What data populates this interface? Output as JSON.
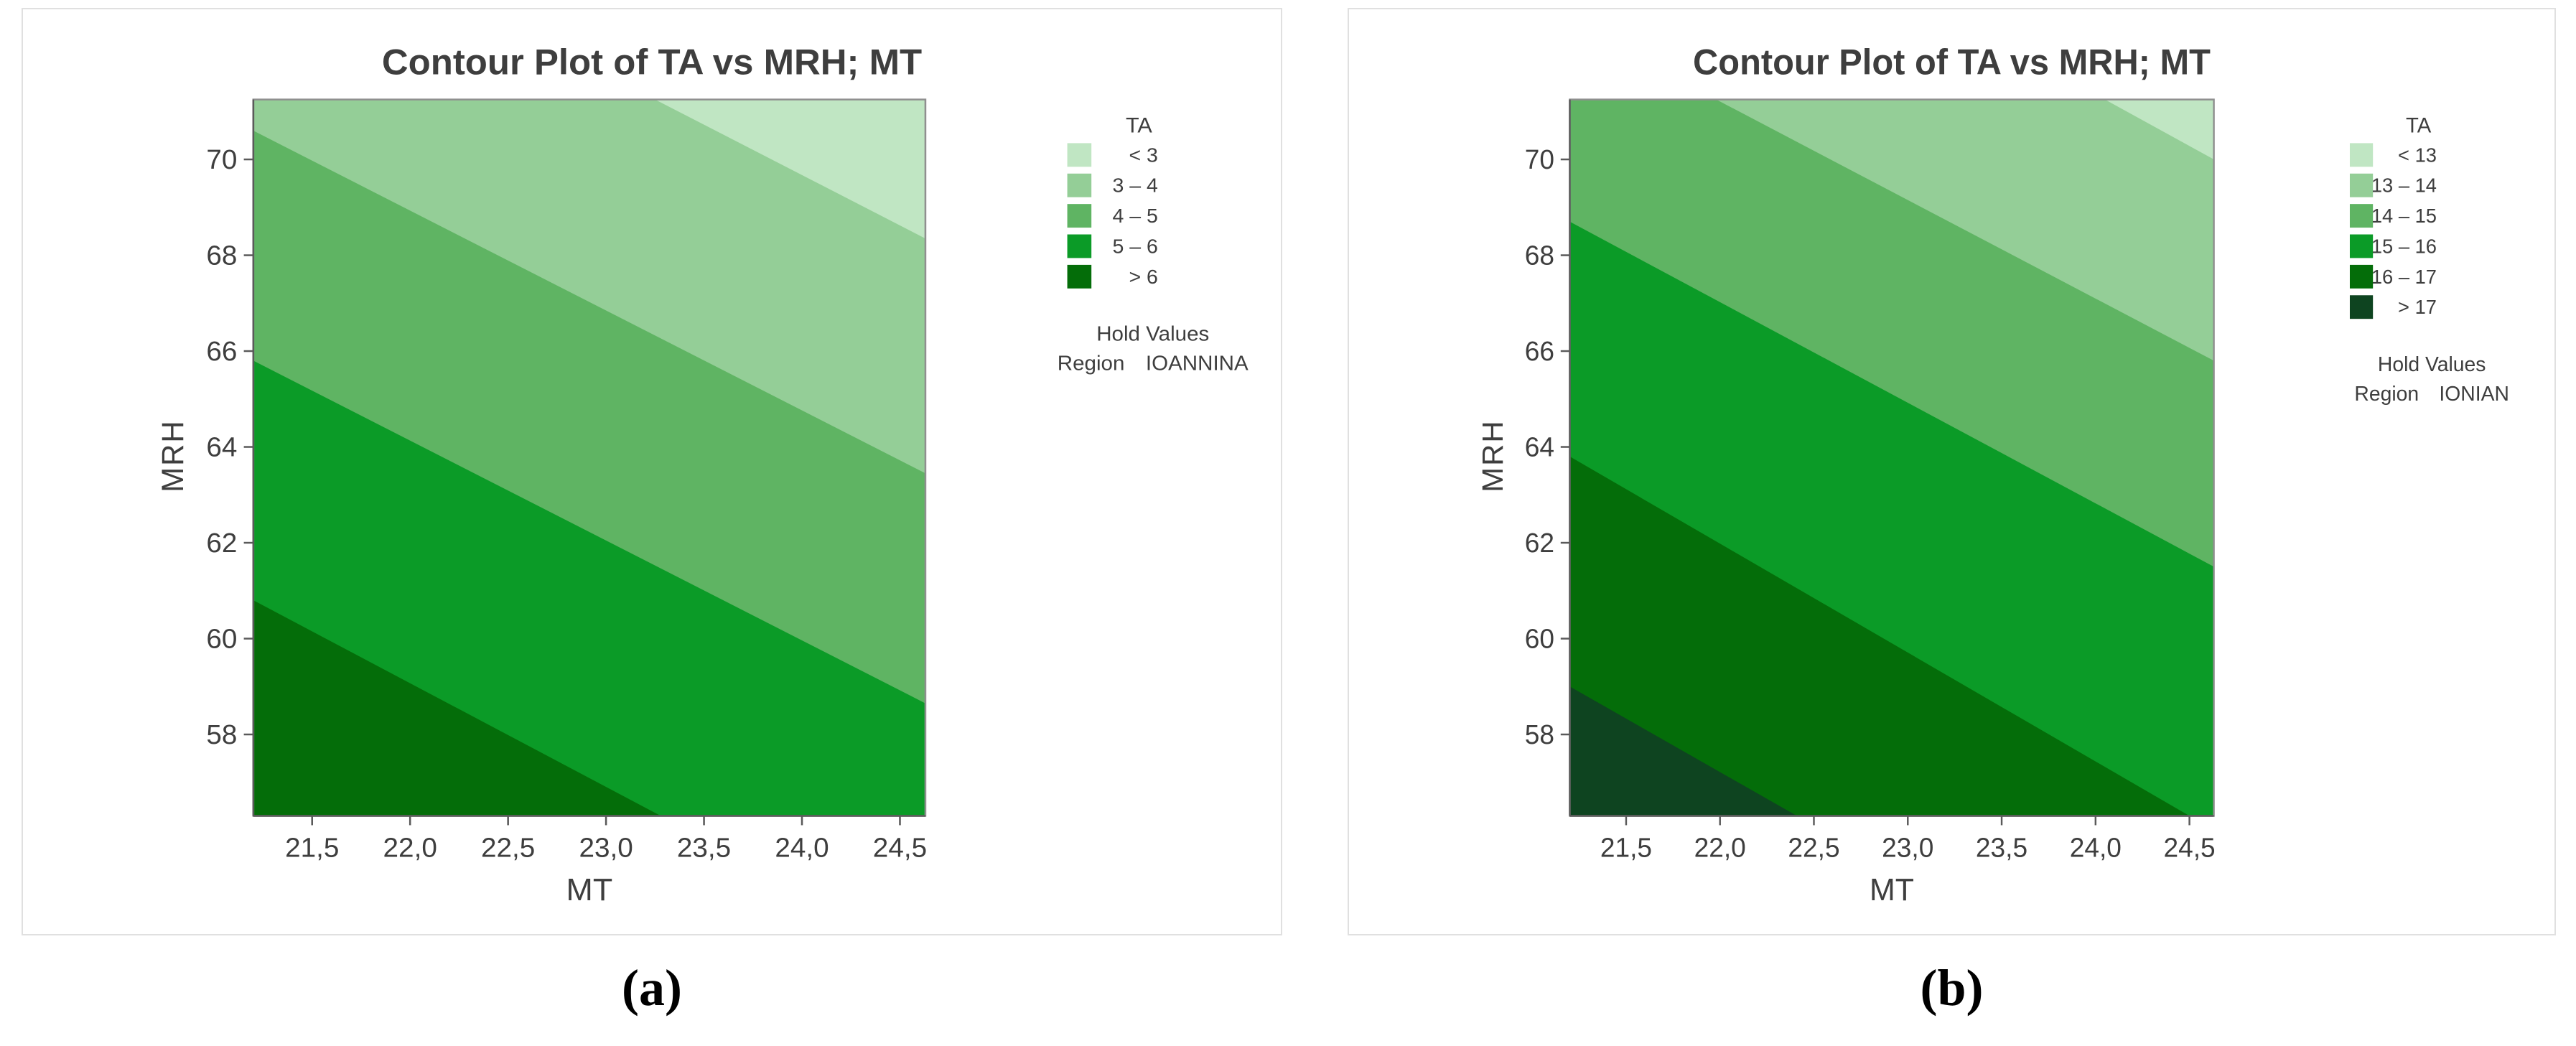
{
  "figure": {
    "colors": {
      "title_text": "#3e3e3e",
      "tick_text": "#3e3e3e",
      "axis_line": "#5a5a5a",
      "plot_border": "#8f8f8f",
      "card_border": "#e0e0e0",
      "background": "#ffffff"
    }
  },
  "chart_data": [
    {
      "type": "heatmap",
      "subtype": "filled-contour",
      "panel": "a",
      "caption": "(a)",
      "title": "Contour Plot of TA vs MRH; MT",
      "xlabel": "MT",
      "ylabel": "MRH",
      "xlim": [
        21.2,
        24.63
      ],
      "ylim": [
        56.3,
        71.25
      ],
      "x_ticks": [
        21.5,
        22.0,
        22.5,
        23.0,
        23.5,
        24.0,
        24.5
      ],
      "x_tick_labels": [
        "21,5",
        "22,0",
        "22,5",
        "23,0",
        "23,5",
        "24,0",
        "24,5"
      ],
      "y_ticks": [
        58,
        60,
        62,
        64,
        66,
        68,
        70
      ],
      "y_tick_labels": [
        "58",
        "60",
        "62",
        "64",
        "66",
        "68",
        "70"
      ],
      "grid": false,
      "legend_position": "right",
      "legend_title": "TA",
      "legend_entries": [
        {
          "label": "<  3",
          "color": "#c0e6c3"
        },
        {
          "label": "3  –  4",
          "color": "#94ce97"
        },
        {
          "label": "4  –  5",
          "color": "#5fb463"
        },
        {
          "label": "5  –  6",
          "color": "#0b9b27"
        },
        {
          "label": ">  6",
          "color": "#046d09"
        }
      ],
      "band_colors": [
        "#c0e6c3",
        "#94ce97",
        "#5fb463",
        "#0b9b27",
        "#046d09"
      ],
      "contour_levels": [
        3,
        4,
        5,
        6
      ],
      "contour_lines": [
        {
          "level": 3,
          "p1": [
            23.25,
            71.25
          ],
          "p2": [
            24.63,
            68.35
          ]
        },
        {
          "level": 4,
          "p1": [
            21.2,
            70.6
          ],
          "p2": [
            24.63,
            63.45
          ]
        },
        {
          "level": 5,
          "p1": [
            21.2,
            65.8
          ],
          "p2": [
            24.63,
            58.65
          ]
        },
        {
          "level": 6,
          "p1": [
            21.2,
            60.8
          ],
          "p2": [
            23.28,
            56.3
          ]
        }
      ],
      "hold_values": {
        "heading": "Hold Values",
        "label": "Region",
        "value": "IOANNINA"
      }
    },
    {
      "type": "heatmap",
      "subtype": "filled-contour",
      "panel": "b",
      "caption": "(b)",
      "title": "Contour Plot of TA vs MRH; MT",
      "xlabel": "MT",
      "ylabel": "MRH",
      "xlim": [
        21.2,
        24.63
      ],
      "ylim": [
        56.3,
        71.25
      ],
      "x_ticks": [
        21.5,
        22.0,
        22.5,
        23.0,
        23.5,
        24.0,
        24.5
      ],
      "x_tick_labels": [
        "21,5",
        "22,0",
        "22,5",
        "23,0",
        "23,5",
        "24,0",
        "24,5"
      ],
      "y_ticks": [
        58,
        60,
        62,
        64,
        66,
        68,
        70
      ],
      "y_tick_labels": [
        "58",
        "60",
        "62",
        "64",
        "66",
        "68",
        "70"
      ],
      "grid": false,
      "legend_position": "right",
      "legend_title": "TA",
      "legend_entries": [
        {
          "label": "<  13",
          "color": "#c0e6c3"
        },
        {
          "label": "13  –  14",
          "color": "#94ce97"
        },
        {
          "label": "14  –  15",
          "color": "#5fb463"
        },
        {
          "label": "15  –  16",
          "color": "#0b9b27"
        },
        {
          "label": "16  –  17",
          "color": "#046d09"
        },
        {
          "label": ">  17",
          "color": "#0e4420"
        }
      ],
      "band_colors": [
        "#c0e6c3",
        "#94ce97",
        "#5fb463",
        "#0b9b27",
        "#046d09",
        "#0e4420"
      ],
      "contour_levels": [
        13,
        14,
        15,
        16,
        17
      ],
      "contour_lines": [
        {
          "level": 13,
          "p1": [
            24.05,
            71.25
          ],
          "p2": [
            24.63,
            70.0
          ]
        },
        {
          "level": 14,
          "p1": [
            21.98,
            71.25
          ],
          "p2": [
            24.63,
            65.8
          ]
        },
        {
          "level": 15,
          "p1": [
            21.2,
            68.7
          ],
          "p2": [
            24.63,
            61.5
          ]
        },
        {
          "level": 16,
          "p1": [
            21.2,
            63.8
          ],
          "p2": [
            24.5,
            56.3
          ]
        },
        {
          "level": 17,
          "p1": [
            21.2,
            59.0
          ],
          "p2": [
            22.41,
            56.3
          ]
        }
      ],
      "hold_values": {
        "heading": "Hold Values",
        "label": "Region",
        "value": "IONIAN"
      }
    }
  ]
}
